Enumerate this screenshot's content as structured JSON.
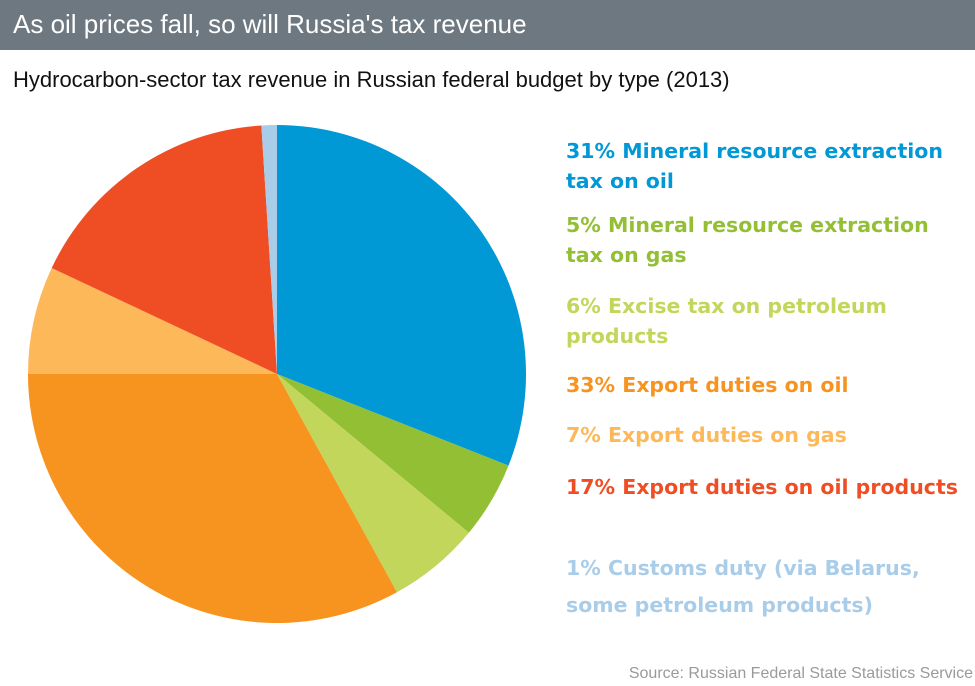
{
  "chart_data": {
    "type": "pie",
    "title": "As oil prices fall, so will Russia's tax revenue",
    "subtitle": "Hydrocarbon-sector tax revenue in Russian federal budget by type (2013)",
    "source": "Source: Russian Federal State Statistics Service",
    "legend_position": "right",
    "slices": [
      {
        "label": "31% Mineral resource extraction tax on oil",
        "value": 31,
        "color": "#0099d6"
      },
      {
        "label": "5% Mineral resource extraction tax on gas",
        "value": 5,
        "color": "#93bf35"
      },
      {
        "label": "6% Excise tax on petroleum products",
        "value": 6,
        "color": "#c2d65b"
      },
      {
        "label": "33% Export duties on oil",
        "value": 33,
        "color": "#f7941f"
      },
      {
        "label": "7% Export duties on gas",
        "value": 7,
        "color": "#fdb85a"
      },
      {
        "label": "17% Export duties on oil products",
        "value": 17,
        "color": "#ef4e24"
      },
      {
        "label": "1% Customs duty (via Belarus, some petroleum products)",
        "value": 1,
        "color": "#a9cde9"
      }
    ]
  }
}
